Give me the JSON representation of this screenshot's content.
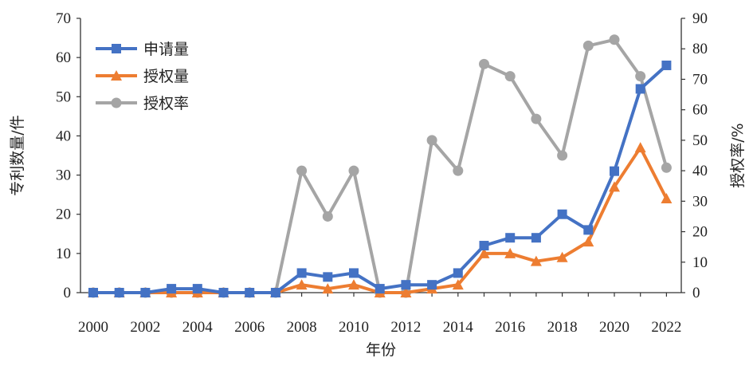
{
  "chart_data": {
    "type": "line",
    "title": "",
    "xlabel": "年份",
    "ylabel": "专利数量/件",
    "y2label": "授权率/%",
    "x": [
      2000,
      2001,
      2002,
      2003,
      2004,
      2005,
      2006,
      2007,
      2008,
      2009,
      2010,
      2011,
      2012,
      2013,
      2014,
      2015,
      2016,
      2017,
      2018,
      2019,
      2020,
      2021,
      2022
    ],
    "xticks": [
      "2000",
      "2002",
      "2004",
      "2006",
      "2008",
      "2010",
      "2012",
      "2014",
      "2016",
      "2018",
      "2020",
      "2022"
    ],
    "ylim": [
      0,
      70
    ],
    "yticks": [
      "0",
      "10",
      "20",
      "30",
      "40",
      "50",
      "60",
      "70"
    ],
    "y2lim": [
      0,
      90
    ],
    "y2ticks": [
      "0",
      "10",
      "20",
      "30",
      "40",
      "50",
      "60",
      "70",
      "80",
      "90"
    ],
    "legend_position": "top-left",
    "grid": false,
    "series": [
      {
        "name": "申请量",
        "axis": "left",
        "color": "#4472c4",
        "marker": "square",
        "values": [
          0,
          0,
          0,
          1,
          1,
          0,
          0,
          0,
          5,
          4,
          5,
          1,
          2,
          2,
          5,
          12,
          14,
          14,
          20,
          16,
          31,
          52,
          58
        ]
      },
      {
        "name": "授权量",
        "axis": "left",
        "color": "#ed7d31",
        "marker": "triangle",
        "values": [
          0,
          0,
          0,
          0,
          0,
          0,
          0,
          0,
          2,
          1,
          2,
          0,
          0,
          1,
          2,
          10,
          10,
          8,
          9,
          13,
          27,
          37,
          24
        ]
      },
      {
        "name": "授权率",
        "axis": "right",
        "color": "#a5a5a5",
        "marker": "circle",
        "values": [
          0,
          0,
          0,
          0,
          0,
          0,
          0,
          0,
          40,
          25,
          40,
          0,
          0,
          50,
          40,
          75,
          71,
          57,
          45,
          81,
          83,
          71,
          41
        ]
      }
    ]
  }
}
